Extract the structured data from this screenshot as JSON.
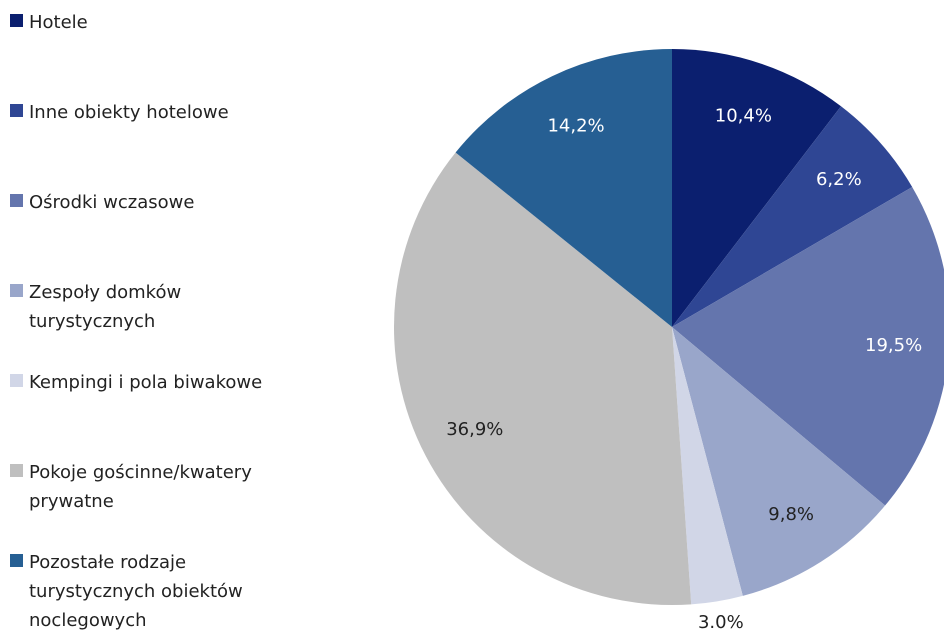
{
  "chart_data": {
    "type": "pie",
    "categories": [
      "Hotele",
      "Inne obiekty hotelowe",
      "Ośrodki wczasowe",
      "Zespoły domków turystycznych",
      "Kempingi i pola biwakowe",
      "Pokoje gościnne/kwatery prywatne",
      "Pozostałe rodzaje turystycznych obiektów noclegowych"
    ],
    "values": [
      10.4,
      6.2,
      19.5,
      9.8,
      3.0,
      36.9,
      14.2
    ],
    "value_labels": [
      "10,4%",
      "6,2%",
      "19,5%",
      "9,8%",
      "3.0%",
      "36,9%",
      "14,2%"
    ],
    "colors": [
      "#0b1f6f",
      "#2f4694",
      "#6475ad",
      "#99a6ca",
      "#d1d6e7",
      "#bfbfbf",
      "#265f93"
    ],
    "legend": "left"
  }
}
